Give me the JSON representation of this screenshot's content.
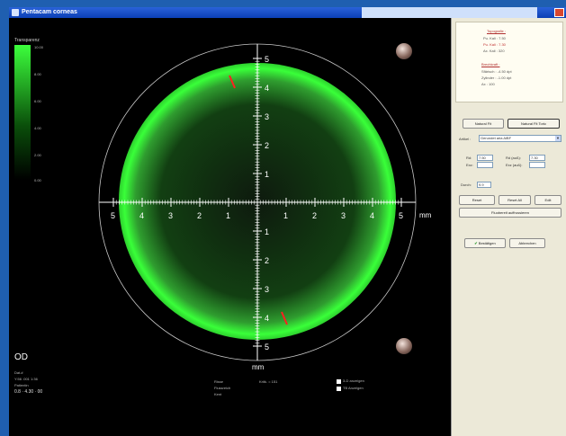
{
  "window": {
    "title": "Pentacam corneas"
  },
  "scale": {
    "title": "Transparenz",
    "values": [
      "10.00",
      "8.00",
      "6.00",
      "4.00",
      "2.00",
      "0.00"
    ]
  },
  "axis": {
    "x_labels": [
      "5",
      "4",
      "3",
      "2",
      "1",
      "1",
      "2",
      "3",
      "4",
      "5"
    ],
    "y_labels": [
      "5",
      "4",
      "3",
      "2",
      "1",
      "1",
      "2",
      "3",
      "4",
      "5"
    ],
    "unit": "mm"
  },
  "eye_label": "OD",
  "bottom_left": {
    "line1": "Dat.#",
    "line2": "Y:56 .001  1:36",
    "line3": "Patientin",
    "line4": "0.8 · 4.30 · 00"
  },
  "bottom_mid": {
    "line1": "Risse",
    "line2": "Flussreich",
    "line3": "Kent",
    "line4": "Kritk. = 151"
  },
  "checkboxes": [
    {
      "label": "3-D anzeigen"
    },
    {
      "label": "TB Anzeigen"
    }
  ],
  "panel": {
    "topo_title": "Topografie :",
    "topo_lines": [
      "Pu. Kali : 7.50",
      "Pu. Kali : 7.30",
      "Ax. Kali : 320"
    ],
    "trans_title": "Brechkraft :",
    "trans_lines": [
      "Sfärisch : -4.50 dpt",
      "Zylinder : -1.00 dpt",
      "Ax : 100"
    ],
    "btn_natural": "Natural Fit",
    "btn_natural_torus": "Natural Fit Toric",
    "artikel_label": "Artikel :",
    "artikel_value": "Gerundet aria AlBF",
    "fields": [
      {
        "label": "Rd:",
        "value": "7.50"
      },
      {
        "label": "Exz:",
        "value": ""
      },
      {
        "label": "Durch:",
        "value": "9.9"
      }
    ],
    "fields_right": [
      {
        "label": "Rd (auß):",
        "value": "7.30"
      },
      {
        "label": "Exz (auß):",
        "value": ""
      }
    ],
    "btn_reset": "Reset",
    "btn_reset_all": "Reset All",
    "btn_edit": "Edit",
    "btn_fluo": "Fluobereit auffrussieren",
    "btn_confirm": "Bestätigen",
    "btn_abort": "Abbrechen"
  }
}
